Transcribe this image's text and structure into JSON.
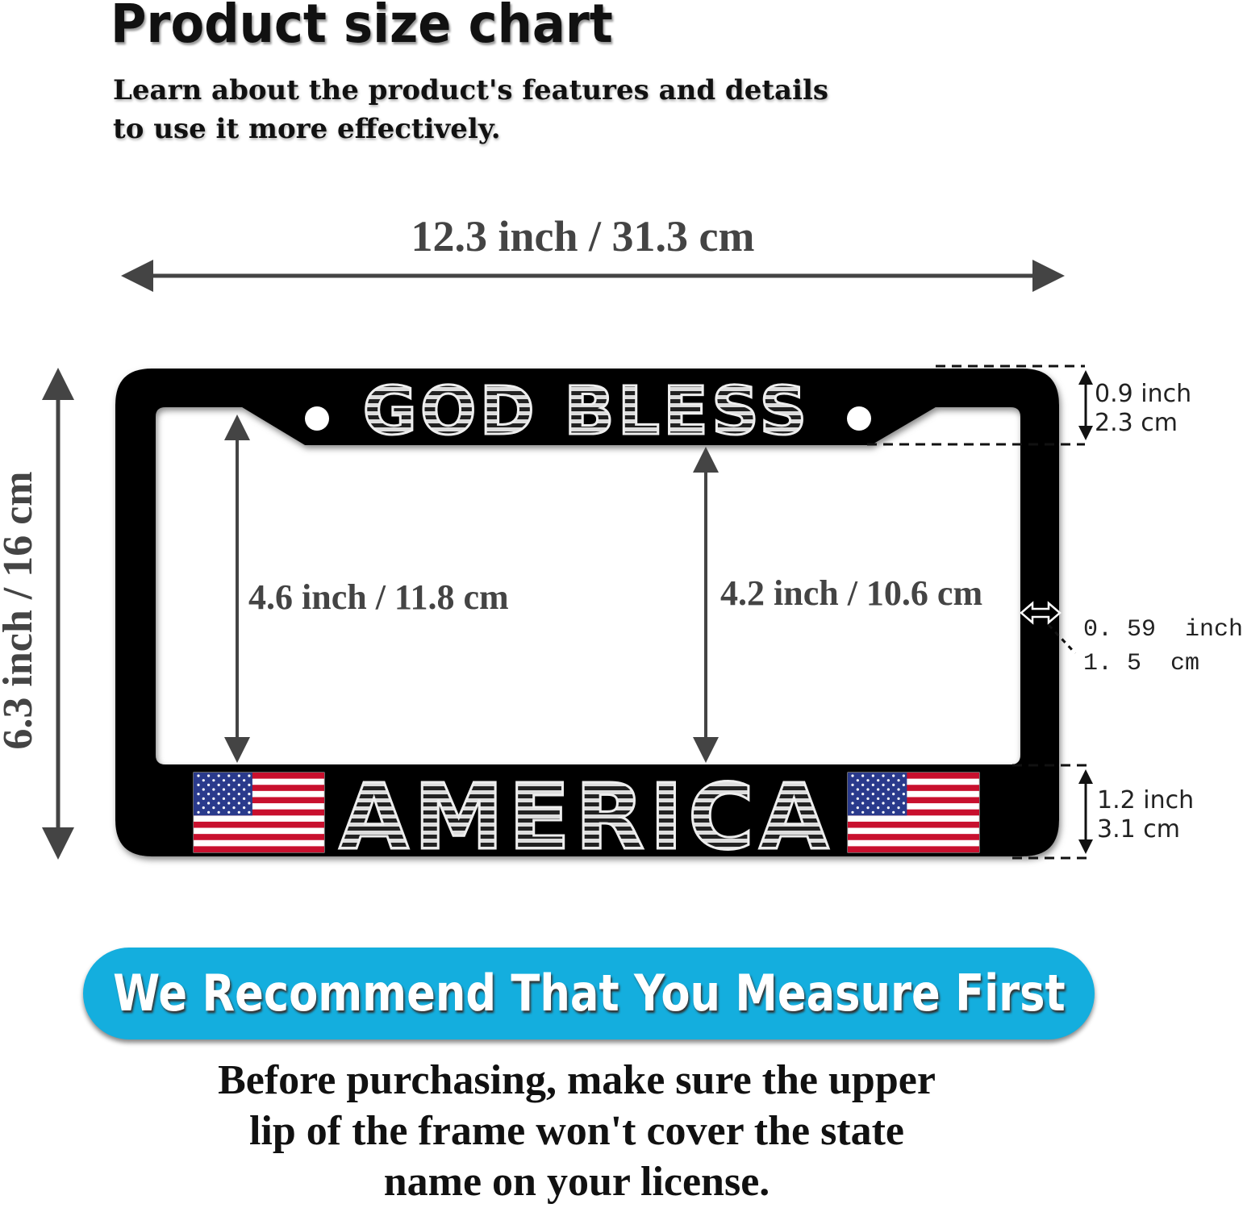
{
  "header": {
    "title": "Product size chart",
    "subtitle_lines": [
      "Learn about the product's features and details",
      "to use it more effectively."
    ]
  },
  "dimensions": {
    "overall_width": "12.3 inch / 31.3 cm",
    "overall_height": "6.3 inch / 16 cm",
    "inner_left_height": "4.6 inch / 11.8 cm",
    "inner_right_height": "4.2 inch / 10.6 cm",
    "top_border": {
      "inch": "0.9 inch",
      "cm": "2.3 cm"
    },
    "side_border": {
      "inch": "0. 59  inch",
      "cm": "1. 5  cm"
    },
    "bottom_border": {
      "inch": "1.2 inch",
      "cm": "3.1 cm"
    }
  },
  "frame": {
    "top_text": "GOD BLESS",
    "bottom_text": "AMERICA",
    "frame_color": "#000000",
    "flag_red": "#c8102e",
    "flag_blue": "#2a3a8c"
  },
  "banner": {
    "text": "We Recommend That You Measure First",
    "color": "#14aede"
  },
  "advice_lines": [
    "Before purchasing, make sure the upper",
    "lip of the frame won't cover the state",
    "name on your license."
  ]
}
